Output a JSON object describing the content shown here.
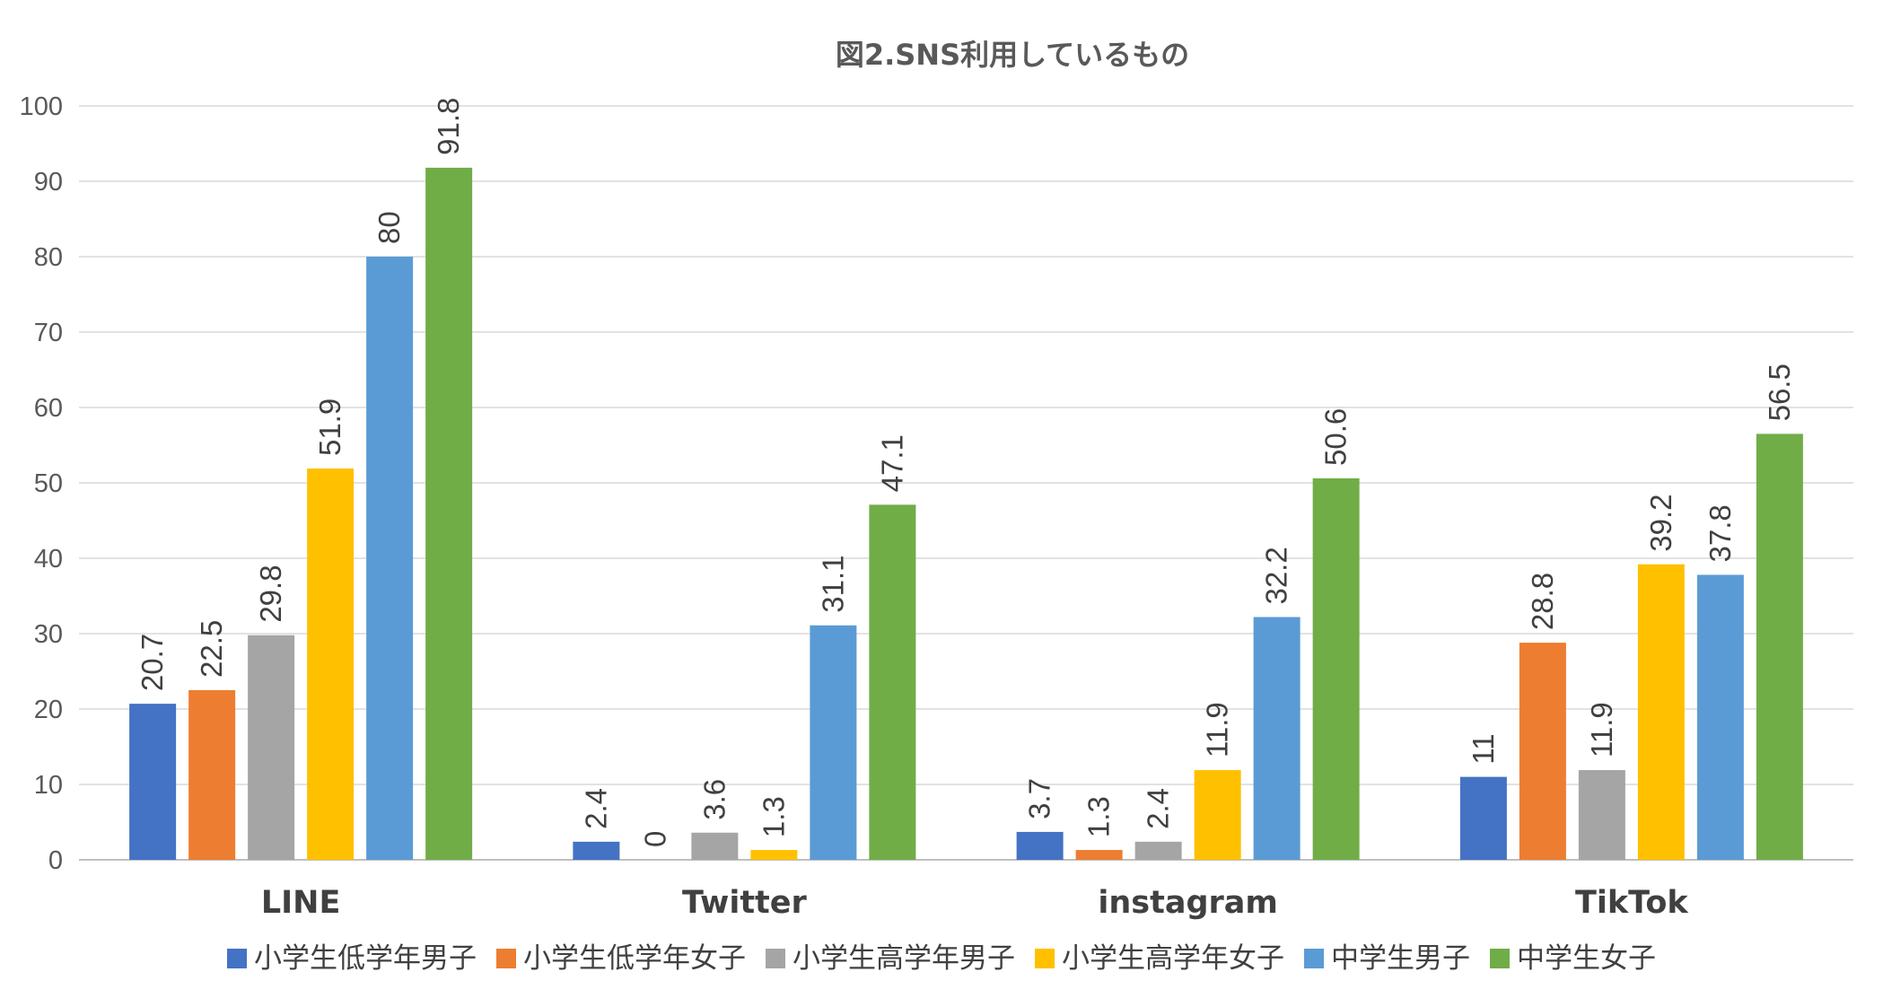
{
  "chart_data": {
    "type": "bar",
    "title": "図2.SNS利用しているもの",
    "xlabel": "",
    "ylabel": "",
    "ylim": [
      0,
      100
    ],
    "yticks": [
      0,
      10,
      20,
      30,
      40,
      50,
      60,
      70,
      80,
      90,
      100
    ],
    "categories": [
      "LINE",
      "Twitter",
      "instagram",
      "TikTok"
    ],
    "grid": true,
    "legend_position": "bottom",
    "series": [
      {
        "name": "小学生低学年男子",
        "color": "#4472C4",
        "values": [
          20.7,
          2.4,
          3.7,
          11
        ]
      },
      {
        "name": "小学生低学年女子",
        "color": "#ED7D31",
        "values": [
          22.5,
          0,
          1.3,
          28.8
        ]
      },
      {
        "name": "小学生高学年男子",
        "color": "#A5A5A5",
        "values": [
          29.8,
          3.6,
          2.4,
          11.9
        ]
      },
      {
        "name": "小学生高学年女子",
        "color": "#FFC000",
        "values": [
          51.9,
          1.3,
          11.9,
          39.2
        ]
      },
      {
        "name": "中学生男子",
        "color": "#5B9BD5",
        "values": [
          80,
          31.1,
          32.2,
          37.8
        ]
      },
      {
        "name": "中学生女子",
        "color": "#70AD47",
        "values": [
          91.8,
          47.1,
          50.6,
          56.5
        ]
      }
    ]
  }
}
